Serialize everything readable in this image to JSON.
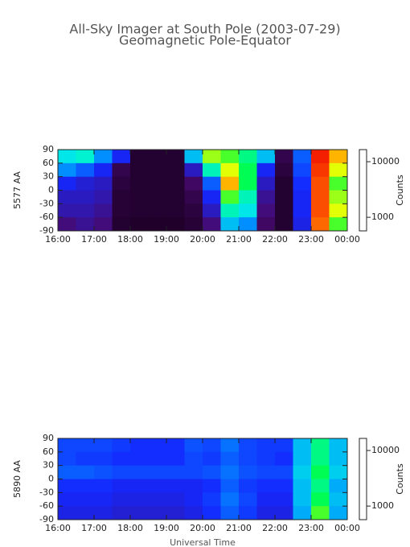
{
  "chart_data": [
    {
      "type": "heatmap",
      "title": "All-Sky Imager at South Pole (2003-07-29)",
      "subtitle": "Geomagnetic Pole-Equator",
      "ylabel": "5577 AA",
      "colorbar_label": "Counts",
      "colormap": "rainbow",
      "color_scale": "log",
      "xbins": [
        16,
        16.5,
        17,
        17.5,
        18,
        18.5,
        19,
        19.5,
        20,
        20.5,
        21,
        21.5,
        22,
        22.5,
        23,
        23.5,
        24
      ],
      "ybins": [
        90,
        60,
        30,
        0,
        -30,
        -60,
        -90
      ],
      "z": [
        [
          3500,
          3800,
          2500,
          1500,
          600,
          600,
          600,
          3000,
          7000,
          6000,
          4500,
          3000,
          700,
          2000,
          15000,
          10000
        ],
        [
          2500,
          2000,
          1500,
          700,
          600,
          600,
          600,
          1200,
          4000,
          8000,
          5000,
          1500,
          650,
          1800,
          14000,
          8000
        ],
        [
          1500,
          1300,
          1200,
          650,
          600,
          600,
          600,
          800,
          2000,
          10000,
          5000,
          1200,
          600,
          1600,
          13000,
          6000
        ],
        [
          1200,
          1200,
          1100,
          620,
          600,
          600,
          600,
          700,
          1500,
          6000,
          4000,
          1000,
          600,
          1500,
          13000,
          7000
        ],
        [
          1100,
          1100,
          1000,
          620,
          600,
          600,
          600,
          650,
          1200,
          4000,
          3500,
          900,
          600,
          1500,
          13000,
          8000
        ],
        [
          900,
          1000,
          900,
          600,
          580,
          580,
          580,
          620,
          900,
          3000,
          2500,
          800,
          600,
          1400,
          12000,
          6000
        ]
      ],
      "xlim": [
        16,
        24
      ],
      "xticks": [
        {
          "value": 16,
          "label": "16:00"
        },
        {
          "value": 17,
          "label": "17:00"
        },
        {
          "value": 18,
          "label": "18:00"
        },
        {
          "value": 19,
          "label": "19:00"
        },
        {
          "value": 20,
          "label": "20:00"
        },
        {
          "value": 21,
          "label": "21:00"
        },
        {
          "value": 22,
          "label": "22:00"
        },
        {
          "value": 23,
          "label": "23:00"
        },
        {
          "value": 24,
          "label": "00:00"
        }
      ],
      "ylim": [
        -90,
        90
      ],
      "yticks": [
        90,
        60,
        30,
        0,
        -30,
        -60,
        -90
      ],
      "clim": [
        570,
        16500
      ],
      "cticks": [
        10000,
        1000
      ]
    },
    {
      "type": "heatmap",
      "ylabel": "5890 AA",
      "xlabel": "Universal Time",
      "colorbar_label": "Counts",
      "colormap": "rainbow",
      "color_scale": "log",
      "xbins": [
        16,
        16.5,
        17,
        17.5,
        18,
        18.5,
        19,
        19.5,
        20,
        20.5,
        21,
        21.5,
        22,
        22.5,
        23,
        23.5,
        24
      ],
      "ybins": [
        90,
        60,
        30,
        0,
        -30,
        -60,
        -90
      ],
      "z": [
        [
          1800,
          1800,
          1800,
          1700,
          1600,
          1600,
          1600,
          1900,
          1800,
          2200,
          1800,
          1700,
          1700,
          3000,
          4500,
          3000
        ],
        [
          1800,
          1700,
          1700,
          1600,
          1600,
          1600,
          1600,
          1800,
          1700,
          2000,
          1800,
          1700,
          1600,
          3000,
          4500,
          3000
        ],
        [
          2000,
          2000,
          1900,
          1800,
          1800,
          1800,
          1800,
          1800,
          1900,
          2200,
          1900,
          1800,
          1800,
          3200,
          5000,
          3200
        ],
        [
          1600,
          1600,
          1600,
          1500,
          1500,
          1500,
          1500,
          1500,
          1600,
          2000,
          1700,
          1600,
          1600,
          3000,
          4500,
          2800
        ],
        [
          1500,
          1500,
          1500,
          1400,
          1400,
          1400,
          1400,
          1500,
          1700,
          2200,
          1800,
          1500,
          1500,
          3000,
          5000,
          3000
        ],
        [
          1400,
          1400,
          1400,
          1300,
          1300,
          1300,
          1300,
          1400,
          1600,
          2000,
          1700,
          1400,
          1400,
          2800,
          6000,
          2800
        ]
      ],
      "xlim": [
        16,
        24
      ],
      "xticks": [
        {
          "value": 16,
          "label": "16:00"
        },
        {
          "value": 17,
          "label": "17:00"
        },
        {
          "value": 18,
          "label": "18:00"
        },
        {
          "value": 19,
          "label": "19:00"
        },
        {
          "value": 20,
          "label": "20:00"
        },
        {
          "value": 21,
          "label": "21:00"
        },
        {
          "value": 22,
          "label": "22:00"
        },
        {
          "value": 23,
          "label": "23:00"
        },
        {
          "value": 24,
          "label": "00:00"
        }
      ],
      "ylim": [
        -90,
        90
      ],
      "yticks": [
        90,
        60,
        30,
        0,
        -30,
        -60,
        -90
      ],
      "clim": [
        570,
        16500
      ],
      "cticks": [
        10000,
        1000
      ]
    }
  ]
}
